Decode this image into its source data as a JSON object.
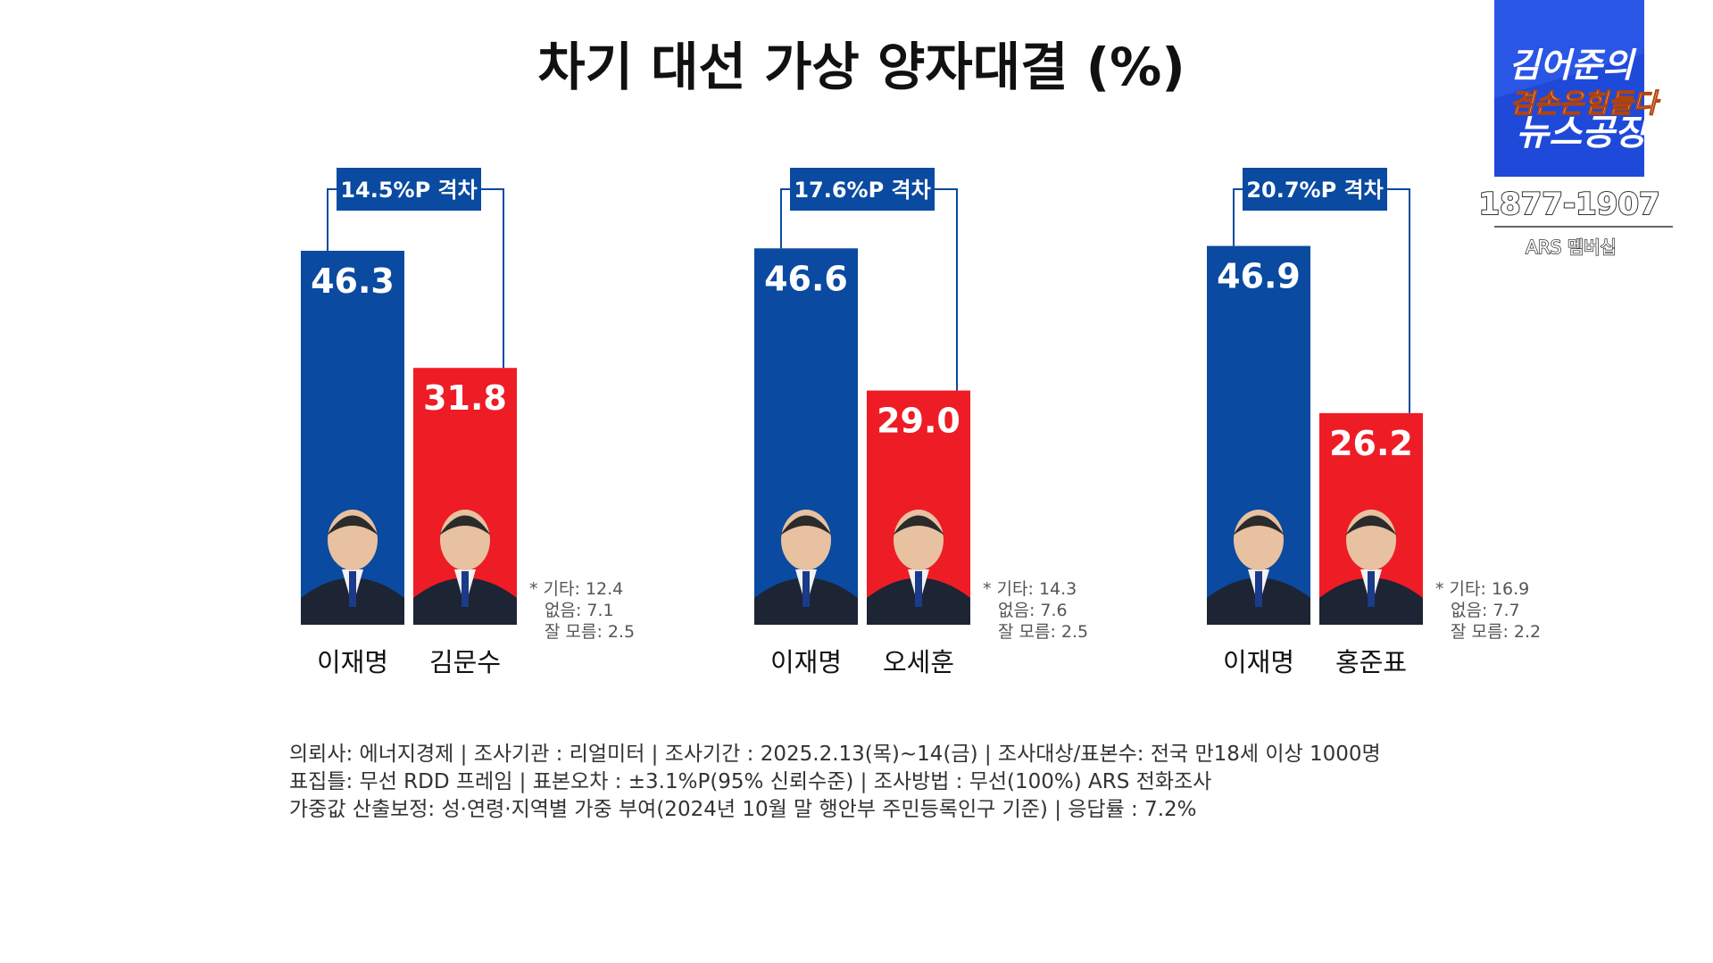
{
  "colors": {
    "blue": "#0a4aa0",
    "red": "#ee1c25",
    "dark_text": "#111111",
    "grey_text": "#555555"
  },
  "chart_data": {
    "type": "bar",
    "title": "차기 대선 가상 양자대결 (%)",
    "ylim": [
      0,
      50
    ],
    "groups": [
      {
        "gap_label": "14.5%P 격차",
        "bars": [
          {
            "name": "이재명",
            "value": 46.3,
            "display": "46.3",
            "color": "blue"
          },
          {
            "name": "김문수",
            "value": 31.8,
            "display": "31.8",
            "color": "red"
          }
        ],
        "others": [
          "* 기타: 12.4",
          "없음: 7.1",
          "잘 모름: 2.5"
        ]
      },
      {
        "gap_label": "17.6%P 격차",
        "bars": [
          {
            "name": "이재명",
            "value": 46.6,
            "display": "46.6",
            "color": "blue"
          },
          {
            "name": "오세훈",
            "value": 29.0,
            "display": "29.0",
            "color": "red"
          }
        ],
        "others": [
          "* 기타: 14.3",
          "없음: 7.6",
          "잘 모름: 2.5"
        ]
      },
      {
        "gap_label": "20.7%P 격차",
        "bars": [
          {
            "name": "이재명",
            "value": 46.9,
            "display": "46.9",
            "color": "blue"
          },
          {
            "name": "홍준표",
            "value": 26.2,
            "display": "26.2",
            "color": "red"
          }
        ],
        "others": [
          "* 기타: 16.9",
          "없음: 7.7",
          "잘 모름: 2.2"
        ]
      }
    ]
  },
  "footnote": [
    "의뢰사: 에너지경제  | 조사기관 : 리얼미터  |  조사기간 : 2025.2.13(목)~14(금)  | 조사대상/표본수: 전국 만18세 이상 1000명",
    "표집틀: 무선 RDD 프레임 | 표본오차 : ±3.1%P(95% 신뢰수준) | 조사방법 : 무선(100%)  ARS 전화조사",
    "가중값 산출보정: 성·연령·지역별  가중 부여(2024년 10월 말 행안부 주민등록인구  기준) | 응답률 : 7.2%"
  ],
  "logo": {
    "line1": "김어준의",
    "line2": "겸손은힘들다",
    "line3": "뉴스공장",
    "phone": "1877-1907",
    "ars": "ARS 멤버십"
  }
}
